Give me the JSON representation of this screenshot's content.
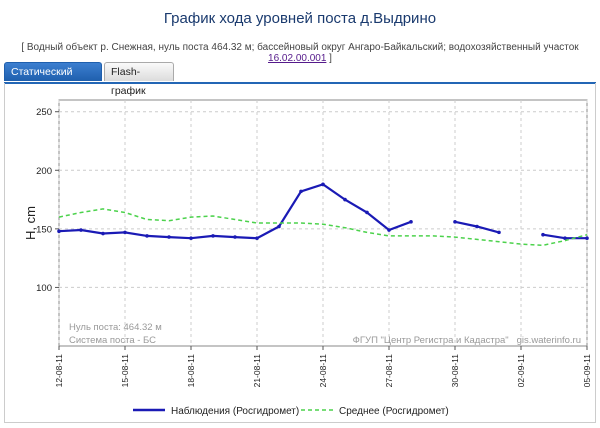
{
  "page": {
    "title": "График хода уровней поста д.Выдрино",
    "info_text": "[ Водный объект р. Снежная, нуль поста 464.32 м; бассейновый округ Ангаро-Байкальский; водохозяйственный участок ",
    "info_link": "16.02.00.001",
    "info_close": " ]"
  },
  "tabs": [
    {
      "label": "Статический график",
      "active": true
    },
    {
      "label": "Flash-график",
      "active": false
    }
  ],
  "chart_data": {
    "type": "line",
    "ylabel": "H, cm",
    "ylim": [
      50,
      260
    ],
    "yticks": [
      100,
      150,
      200,
      250
    ],
    "x_start": "12-08-11",
    "x_end": "05-09-11",
    "xticks": [
      "12-08-11",
      "15-08-11",
      "18-08-11",
      "21-08-11",
      "24-08-11",
      "27-08-11",
      "30-08-11",
      "02-09-11",
      "05-09-11"
    ],
    "grid": true,
    "annotations": {
      "zero_level": "Нуль поста: 464.32 м",
      "system": "Система поста - БС",
      "credit": "ФГУП \"Центр Регистра и Кадастра\"   gis.waterinfo.ru"
    },
    "legend_position": "bottom",
    "colors": {
      "observed": "#1a1ab5",
      "average": "#4cd24c"
    },
    "series": [
      {
        "name": "Наблюдения (Росгидромет)",
        "style": "solid",
        "x": [
          "12-08-11",
          "13-08-11",
          "14-08-11",
          "15-08-11",
          "16-08-11",
          "17-08-11",
          "18-08-11",
          "19-08-11",
          "20-08-11",
          "21-08-11",
          "22-08-11",
          "23-08-11",
          "24-08-11",
          "25-08-11",
          "26-08-11",
          "27-08-11",
          "28-08-11",
          "29-08-11",
          "30-08-11",
          "31-08-11",
          "01-09-11",
          "02-09-11",
          "03-09-11",
          "04-09-11",
          "05-09-11"
        ],
        "values": [
          148,
          149,
          146,
          147,
          144,
          143,
          142,
          144,
          143,
          142,
          152,
          182,
          188,
          175,
          164,
          149,
          156,
          null,
          156,
          152,
          147,
          null,
          145,
          142,
          142
        ]
      },
      {
        "name": "Среднее (Росгидромет)",
        "style": "dashed",
        "x": [
          "12-08-11",
          "13-08-11",
          "14-08-11",
          "15-08-11",
          "16-08-11",
          "17-08-11",
          "18-08-11",
          "19-08-11",
          "20-08-11",
          "21-08-11",
          "22-08-11",
          "23-08-11",
          "24-08-11",
          "25-08-11",
          "26-08-11",
          "27-08-11",
          "28-08-11",
          "29-08-11",
          "30-08-11",
          "31-08-11",
          "01-09-11",
          "02-09-11",
          "03-09-11",
          "04-09-11",
          "05-09-11"
        ],
        "values": [
          160,
          164,
          167,
          164,
          158,
          157,
          160,
          161,
          158,
          155,
          155,
          155,
          154,
          151,
          147,
          144,
          144,
          144,
          143,
          141,
          139,
          137,
          136,
          140,
          145
        ]
      }
    ]
  }
}
